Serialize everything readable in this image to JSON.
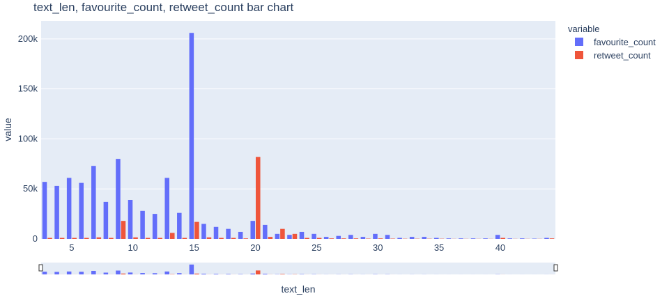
{
  "chart_data": {
    "type": "bar",
    "barmode": "stack",
    "title": "text_len, favourite_count, retweet_count bar chart",
    "xlabel": "text_len",
    "ylabel": "value",
    "xlim": [
      2.5,
      44.5
    ],
    "ylim": [
      0,
      218000
    ],
    "x_ticks": [
      5,
      10,
      15,
      20,
      25,
      30,
      35,
      40
    ],
    "y_ticks": [
      0,
      50000,
      100000,
      150000,
      200000
    ],
    "y_tick_labels": [
      "0",
      "50k",
      "100k",
      "150k",
      "200k"
    ],
    "legend_title": "variable",
    "legend_position": "right",
    "grid": true,
    "rangeslider": true,
    "colors": {
      "favourite_count": "#636efa",
      "retweet_count": "#ef553b",
      "plot_bg": "#e5ecf6"
    },
    "series": [
      {
        "name": "favourite_count",
        "x": [
          3,
          4,
          5,
          6,
          7,
          8,
          9,
          10,
          11,
          12,
          13,
          14,
          15,
          16,
          17,
          18,
          19,
          20,
          21,
          22,
          23,
          24,
          25,
          26,
          27,
          28,
          29,
          30,
          31,
          32,
          33,
          34,
          35,
          36,
          37,
          38,
          39,
          40,
          41,
          42,
          43,
          44
        ],
        "values": [
          57000,
          53000,
          61000,
          56000,
          73000,
          37000,
          80000,
          39000,
          28000,
          25000,
          61000,
          26000,
          206000,
          15000,
          12000,
          10000,
          7000,
          18000,
          14000,
          5000,
          4000,
          7000,
          5000,
          2000,
          3000,
          4000,
          2000,
          5000,
          4000,
          1000,
          2000,
          2000,
          1000,
          500,
          500,
          500,
          500,
          4000,
          500,
          500,
          300,
          1000
        ]
      },
      {
        "name": "retweet_count",
        "x": [
          3,
          4,
          5,
          6,
          7,
          8,
          9,
          10,
          11,
          12,
          13,
          14,
          15,
          16,
          17,
          18,
          19,
          20,
          21,
          22,
          23,
          24,
          25,
          26,
          27,
          28,
          29,
          30,
          31,
          32,
          33,
          34,
          35,
          36,
          37,
          38,
          39,
          40,
          41,
          42,
          43,
          44
        ],
        "values": [
          1000,
          1000,
          1000,
          1000,
          1500,
          1000,
          18000,
          1500,
          1000,
          1000,
          6000,
          1000,
          17000,
          1500,
          1000,
          1000,
          500,
          82000,
          2000,
          10000,
          5000,
          1000,
          1000,
          500,
          500,
          500,
          300,
          500,
          300,
          200,
          200,
          200,
          200,
          100,
          100,
          100,
          100,
          1000,
          100,
          100,
          100,
          500
        ]
      }
    ]
  }
}
